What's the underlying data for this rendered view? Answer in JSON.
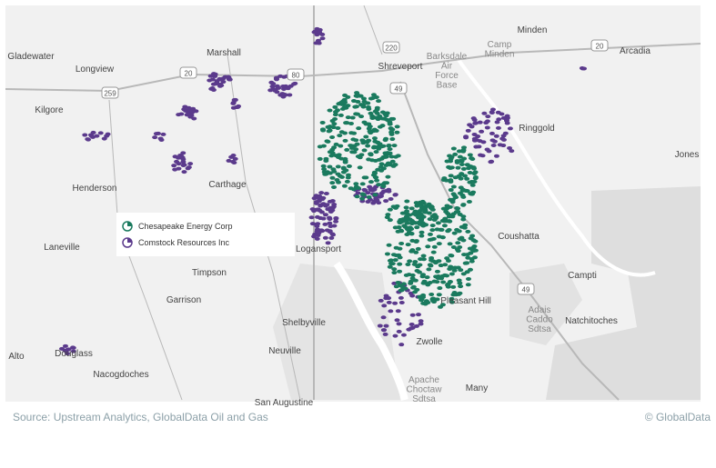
{
  "map": {
    "places": [
      {
        "lines": [
          "Minden"
        ]
      },
      {
        "lines": [
          "Arcadia"
        ]
      },
      {
        "lines": [
          "Gladewater"
        ]
      },
      {
        "lines": [
          "Longview"
        ]
      },
      {
        "lines": [
          "Marshall"
        ]
      },
      {
        "lines": [
          "Shreveport"
        ]
      },
      {
        "lines": [
          "Camp",
          "Minden"
        ]
      },
      {
        "lines": [
          "Barksdale",
          "Air",
          "Force",
          "Base"
        ]
      },
      {
        "lines": [
          "Kilgore"
        ]
      },
      {
        "lines": [
          "Ringgold"
        ]
      },
      {
        "lines": [
          "Jones"
        ]
      },
      {
        "lines": [
          "Henderson"
        ]
      },
      {
        "lines": [
          "Carthage"
        ]
      },
      {
        "lines": [
          "Coushatta"
        ]
      },
      {
        "lines": [
          "Laneville"
        ]
      },
      {
        "lines": [
          "Logansport"
        ]
      },
      {
        "lines": [
          "Timpson"
        ]
      },
      {
        "lines": [
          "Campti"
        ]
      },
      {
        "lines": [
          "Garrison"
        ]
      },
      {
        "lines": [
          "Pleasant Hill"
        ]
      },
      {
        "lines": [
          "Adais",
          "Caddo",
          "Sdtsa"
        ]
      },
      {
        "lines": [
          "Natchitoches"
        ]
      },
      {
        "lines": [
          "Shelbyville"
        ]
      },
      {
        "lines": [
          "Neuville"
        ]
      },
      {
        "lines": [
          "Douglass"
        ]
      },
      {
        "lines": [
          "Alto"
        ]
      },
      {
        "lines": [
          "Nacogdoches"
        ]
      },
      {
        "lines": [
          "Zwolle"
        ]
      },
      {
        "lines": [
          "Apache",
          "Choctaw",
          "Sdtsa"
        ]
      },
      {
        "lines": [
          "Many"
        ]
      },
      {
        "lines": [
          "San Augustine"
        ]
      }
    ],
    "shields": [
      "20",
      "259",
      "80",
      "220",
      "49",
      "20",
      "49"
    ]
  },
  "legend": {
    "items": [
      "Chesapeake Energy Corp",
      "Comstock Resources Inc"
    ]
  },
  "footer": {
    "source": "Source: Upstream Analytics, GlobalData Oil and Gas",
    "copyright": "© GlobalData"
  }
}
